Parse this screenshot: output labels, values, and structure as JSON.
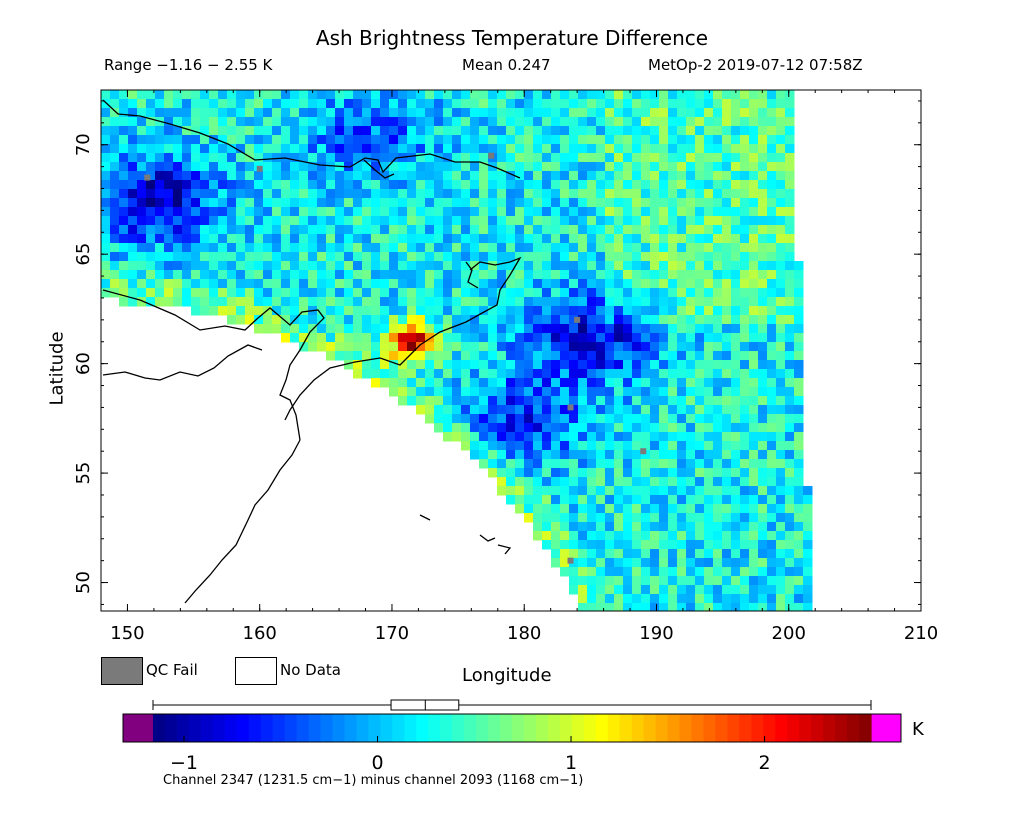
{
  "title": "Ash Brightness Temperature Difference",
  "header": {
    "range": "Range −1.16 − 2.55 K",
    "mean": "Mean 0.247",
    "source": "MetOp-2 2019-07-12 07:58Z"
  },
  "axes": {
    "x_label": "Longitude",
    "y_label": "Latitude",
    "x_range": [
      148,
      210
    ],
    "y_range": [
      48.7,
      72.5
    ],
    "x_ticks": [
      "150",
      "160",
      "170",
      "180",
      "190",
      "200",
      "210"
    ],
    "y_ticks": [
      "50",
      "55",
      "60",
      "65",
      "70"
    ]
  },
  "legend": {
    "qc_fail": "QC Fail",
    "no_data": "No Data",
    "qc_fail_color": "#7a7a7a",
    "no_data_color": "#ffffff"
  },
  "colorbar": {
    "range": [
      -1.16,
      2.55
    ],
    "tick_labels": [
      "−1",
      "0",
      "1",
      "2"
    ],
    "tick_values": [
      -1,
      0,
      1,
      2
    ],
    "unit": "K",
    "under_color": "#800080",
    "over_color": "#ff00ff",
    "mean": 0.247,
    "box_range": [
      0.07,
      0.42
    ],
    "colors": [
      "#000080",
      "#0000ff",
      "#007fff",
      "#00ffff",
      "#7fff7f",
      "#ffff00",
      "#ff7f00",
      "#ff0000",
      "#800000"
    ]
  },
  "footnote": "Channel 2347 (1231.5 cm−1) minus channel 2093 (1168 cm−1)",
  "map_data": {
    "background_mean": 0.25,
    "hotspot": {
      "lon": 171.5,
      "lat": 61.0,
      "peak": 2.3
    },
    "warm_band_value": 0.9,
    "cold_regions": [
      {
        "lon": 152,
        "lat": 67.5,
        "value": -0.9
      },
      {
        "lon": 168,
        "lat": 70.5,
        "value": -0.4
      },
      {
        "lon": 185,
        "lat": 61.2,
        "value": -0.8
      },
      {
        "lon": 180,
        "lat": 57.5,
        "value": -0.6
      }
    ],
    "qc_fail_cells": [
      [
        151.5,
        68.5
      ],
      [
        160,
        68.9
      ],
      [
        177.5,
        69.5
      ],
      [
        183.5,
        58.0
      ],
      [
        184,
        62.0
      ],
      [
        183.5,
        51.0
      ],
      [
        189,
        56.0
      ]
    ],
    "swath_edges": {
      "right_top_lon": 200.2,
      "right_bottom_lon": 201.8
    }
  }
}
